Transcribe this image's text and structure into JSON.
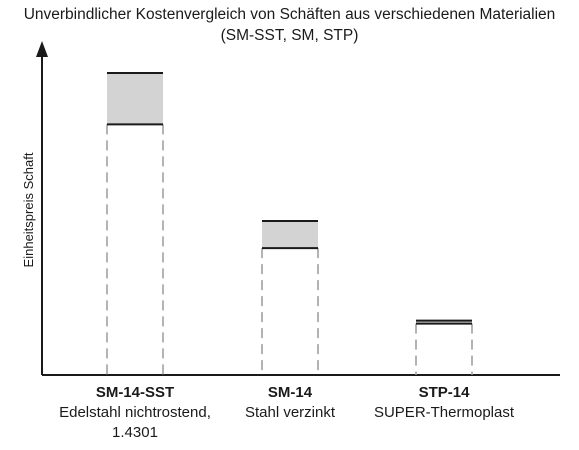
{
  "chart_data": {
    "type": "bar",
    "title": "Unverbindlicher Kostenvergleich von Schäften aus verschiedenen Materialien",
    "subtitle": "(SM-SST, SM, STP)",
    "ylabel": "Einheitspreis Schaft",
    "xlabel": "",
    "ylim": [
      0,
      100
    ],
    "grid": false,
    "categories": [
      {
        "name": "SM-14-SST",
        "desc": [
          "Edelstahl nichtrostend,",
          "1.4301"
        ]
      },
      {
        "name": "SM-14",
        "desc": [
          "Stahl verzinkt"
        ]
      },
      {
        "name": "STP-14",
        "desc": [
          "SUPER-Thermoplast"
        ]
      }
    ],
    "series": [
      {
        "values": [
          83,
          42,
          17
        ],
        "note": "lower bound (dashed column top line)"
      },
      {
        "values": [
          100,
          51,
          18
        ],
        "note": "upper bound (top of grey range band)"
      }
    ],
    "colors": {
      "range_fill": "#d3d3d3",
      "line": "#1a1a1a",
      "dashed": "#9a9a9a"
    }
  }
}
